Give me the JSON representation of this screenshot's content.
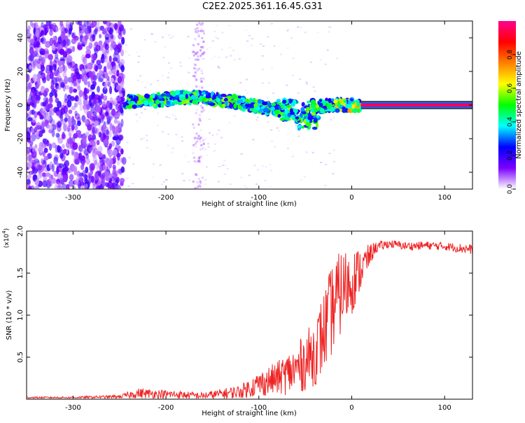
{
  "title": "C2E2.2025.361.16.45.G31",
  "chart_data": [
    {
      "type": "heatmap",
      "title": "C2E2.2025.361.16.45.G31",
      "xlabel": "Height of straight line (km)",
      "ylabel": "Frequency (Hz)",
      "xlim": [
        -350,
        130
      ],
      "ylim": [
        -50,
        50
      ],
      "xticks": [
        -300,
        -200,
        -100,
        0,
        100
      ],
      "yticks": [
        -40,
        -20,
        0,
        20,
        40
      ],
      "colorbar": {
        "label": "Normalized spectral amplitude",
        "range": [
          0,
          1
        ],
        "ticks": [
          "0.0",
          "0.2",
          "0.4",
          "0.6",
          "0.8"
        ],
        "colors": [
          "#ffffff",
          "#7b00ff",
          "#0000ff",
          "#00ffff",
          "#00ff00",
          "#ffff00",
          "#ff8000",
          "#ff0000",
          "#ff0090"
        ]
      },
      "regions": [
        {
          "name": "noise",
          "x": [
            -350,
            -245
          ],
          "freq": [
            -50,
            50
          ],
          "amplitude": 0.15
        },
        {
          "name": "signal-track",
          "x": [
            -245,
            10
          ],
          "freq_center": [
            2,
            2,
            4,
            5,
            3,
            1,
            -2,
            -3,
            -1,
            0,
            0
          ],
          "amplitude": 0.45
        },
        {
          "name": "locked-tone",
          "x": [
            10,
            130
          ],
          "freq": 0,
          "amplitude": 0.95
        }
      ]
    },
    {
      "type": "line",
      "xlabel": "Height of straight line (km)",
      "ylabel": "SNR (10 * v/v)",
      "multiplier": "(x10",
      "multiplier_exp": "4",
      "multiplier_close": ")",
      "xlim": [
        -350,
        130
      ],
      "ylim": [
        0,
        2.0
      ],
      "xticks": [
        -300,
        -200,
        -100,
        0,
        100
      ],
      "yticks": [
        "0.5",
        "1.0",
        "1.5",
        "2.0"
      ],
      "series": [
        {
          "name": "SNR",
          "color": "#ee2222",
          "x": [
            -350,
            -300,
            -250,
            -230,
            -200,
            -160,
            -120,
            -100,
            -80,
            -60,
            -40,
            -30,
            -20,
            -10,
            0,
            10,
            25,
            40,
            60,
            80,
            100,
            130
          ],
          "y": [
            0.02,
            0.02,
            0.03,
            0.07,
            0.06,
            0.04,
            0.09,
            0.18,
            0.25,
            0.35,
            0.55,
            0.8,
            1.1,
            1.3,
            1.4,
            1.55,
            1.8,
            1.85,
            1.82,
            1.83,
            1.82,
            1.78
          ],
          "noise": [
            0.01,
            0.01,
            0.02,
            0.06,
            0.05,
            0.04,
            0.08,
            0.15,
            0.2,
            0.3,
            0.4,
            0.5,
            0.55,
            0.5,
            0.4,
            0.25,
            0.07,
            0.05,
            0.05,
            0.05,
            0.05,
            0.06
          ]
        }
      ]
    }
  ]
}
